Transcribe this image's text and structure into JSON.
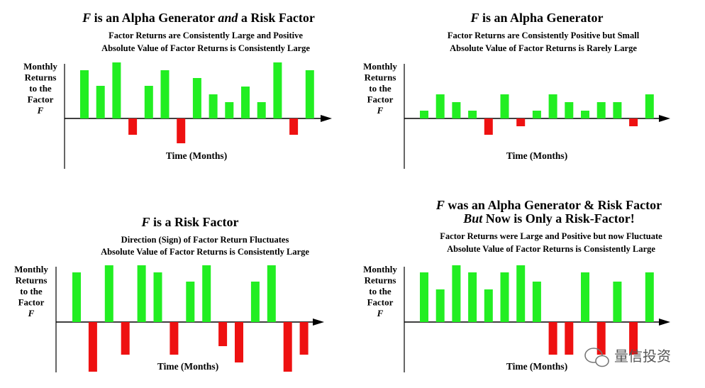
{
  "chart_data": [
    {
      "type": "bar",
      "title_parts": [
        {
          "text": "F",
          "italic": true
        },
        {
          "text": " is an Alpha Generator ",
          "italic": false
        },
        {
          "text": "and",
          "italic": true
        },
        {
          "text": " a Risk Factor",
          "italic": false
        }
      ],
      "subtitle_lines": [
        "Factor Returns are Consistently Large and Positive",
        "Absolute Value of Factor Returns is Consistently Large"
      ],
      "ylabel_lines": [
        "Monthly",
        "Returns",
        "to the",
        "Factor",
        "F"
      ],
      "xlabel": "Time  (Months)",
      "ylim": [
        -36,
        80
      ],
      "values": [
        68,
        46,
        79,
        -23,
        46,
        68,
        -35,
        57,
        34,
        23,
        45,
        23,
        79,
        -23,
        68
      ]
    },
    {
      "type": "bar",
      "title_parts": [
        {
          "text": "F",
          "italic": true
        },
        {
          "text": " is an Alpha Generator",
          "italic": false
        }
      ],
      "subtitle_lines": [
        "Factor Returns are Consistently Positive but Small",
        "Absolute Value of Factor Returns is Rarely Large"
      ],
      "ylabel_lines": [
        "Monthly",
        "Returns",
        "to the",
        "Factor",
        "F"
      ],
      "xlabel": "Time  (Months)",
      "ylim": [
        -36,
        80
      ],
      "values": [
        11,
        34,
        23,
        11,
        -23,
        34,
        -11,
        11,
        34,
        23,
        11,
        23,
        23,
        -11,
        34
      ]
    },
    {
      "type": "bar",
      "title_parts": [
        {
          "text": "F",
          "italic": true
        },
        {
          "text": " is a Risk Factor",
          "italic": false
        }
      ],
      "subtitle_lines": [
        "Direction (Sign) of Factor Return  Fluctuates",
        "Absolute Value of Factor Returns is Consistently Large"
      ],
      "ylabel_lines": [
        "Monthly",
        "Returns",
        "to the",
        "Factor",
        "F"
      ],
      "xlabel": "Time  (Months)",
      "ylim": [
        -70,
        80
      ],
      "values": [
        70,
        -70,
        80,
        -46,
        80,
        70,
        -46,
        57,
        80,
        -34,
        -57,
        57,
        80,
        -70,
        -46
      ]
    },
    {
      "type": "bar",
      "title_parts": [
        {
          "text": "F",
          "italic": true
        },
        {
          "text": " was an Alpha Generator & Risk Factor",
          "italic": false
        }
      ],
      "title_line2_parts": [
        {
          "text": "But",
          "italic": true
        },
        {
          "text": " Now is Only a Risk-Factor!",
          "italic": false
        }
      ],
      "subtitle_lines": [
        "Factor Returns were Large and Positive but now Fluctuate",
        "Absolute Value of Factor Returns is Consistently Large"
      ],
      "ylabel_lines": [
        "Monthly",
        "Returns",
        "to the",
        "Factor",
        "F"
      ],
      "xlabel": "Time  (Months)",
      "ylim": [
        -46,
        80
      ],
      "values": [
        70,
        46,
        80,
        70,
        46,
        70,
        80,
        57,
        -46,
        -46,
        70,
        -46,
        57,
        -46,
        70
      ]
    }
  ],
  "colors": {
    "positive": "#22ee22",
    "negative": "#ee1111",
    "axis": "#000000"
  },
  "watermark": "量信投资"
}
